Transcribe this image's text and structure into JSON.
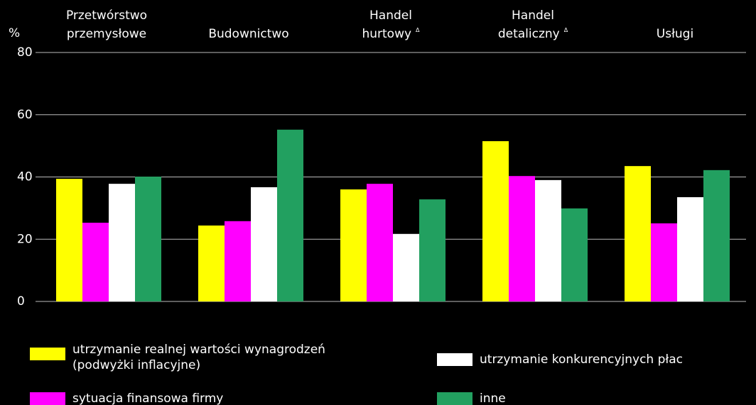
{
  "chart_data": {
    "type": "bar",
    "y_unit": "%",
    "categories": [
      [
        "Przetwórstwo",
        "przemysłowe"
      ],
      [
        "Budownictwo"
      ],
      [
        "Handel",
        "hurtowy"
      ],
      [
        "Handel",
        "detaliczny"
      ],
      [
        "Usługi"
      ]
    ],
    "category_marks": [
      null,
      null,
      "Δ",
      "Δ",
      null
    ],
    "series": [
      {
        "name": "utrzymanie realnej wartości wynagrodzeń (podwyżki inflacyjne)",
        "color": "#ffff00",
        "values": [
          39.4,
          24.4,
          36.0,
          51.5,
          43.5
        ]
      },
      {
        "name": "sytuacja finansowa firmy",
        "color": "#ff00ff",
        "values": [
          25.3,
          25.8,
          37.8,
          40.3,
          25.1
        ]
      },
      {
        "name": "utrzymanie konkurencyjnych płac",
        "color": "#ffffff",
        "values": [
          37.8,
          36.7,
          21.7,
          39.0,
          33.5
        ]
      },
      {
        "name": "inne",
        "color": "#22a060",
        "values": [
          40.1,
          55.2,
          32.8,
          29.9,
          42.2
        ]
      }
    ],
    "ylim": [
      0,
      80
    ],
    "yticks": [
      0,
      20,
      40,
      60,
      80
    ],
    "grid": true
  }
}
